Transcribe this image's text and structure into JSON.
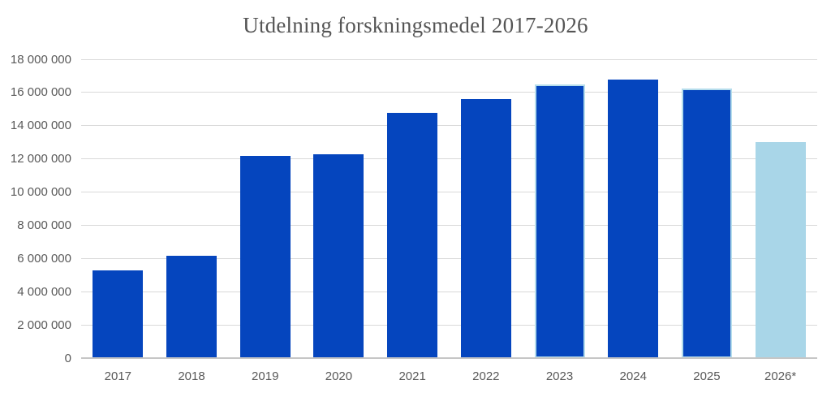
{
  "chart_data": {
    "type": "bar",
    "title": "Utdelning forskningsmedel 2017-2026",
    "categories": [
      "2017",
      "2018",
      "2019",
      "2020",
      "2021",
      "2022",
      "2023",
      "2024",
      "2025",
      "2026*"
    ],
    "values": [
      5300000,
      6150000,
      12200000,
      12300000,
      14750000,
      15600000,
      16500000,
      16800000,
      16250000,
      13000000
    ],
    "xlabel": "",
    "ylabel": "",
    "ylim": [
      0,
      18000000
    ],
    "ytick_values": [
      0,
      2000000,
      4000000,
      6000000,
      8000000,
      10000000,
      12000000,
      14000000,
      16000000,
      18000000
    ],
    "ytick_labels": [
      "0",
      "2 000 000",
      "4 000 000",
      "6 000 000",
      "8 000 000",
      "10 000 000",
      "12 000 000",
      "14 000 000",
      "16 000 000",
      "18 000 000"
    ],
    "grid": "horizontal",
    "legend": "none",
    "forecast_category": "2026*",
    "highlight_outlined_categories": [
      "2023",
      "2025"
    ],
    "colors": {
      "bar_default": "#0545BE",
      "bar_forecast": "#A9D6E8",
      "bar_highlight_border": "#B5DDEC",
      "gridline": "#D9D9D9",
      "axis_line": "#C6C6C6",
      "axis_text": "#595959",
      "title_text": "#555555"
    }
  }
}
